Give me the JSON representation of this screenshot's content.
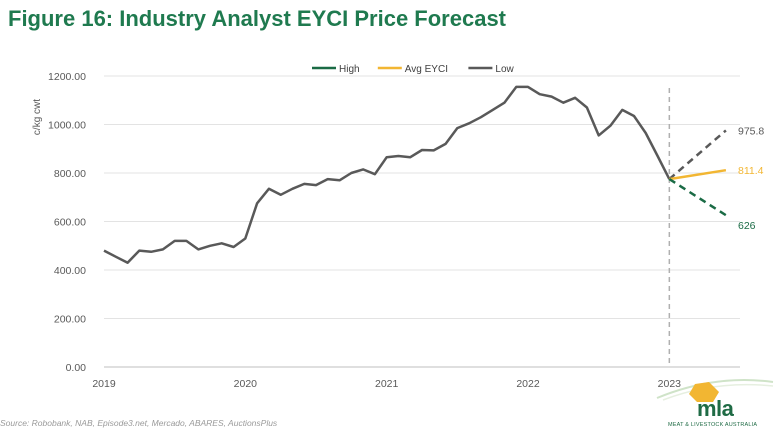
{
  "title": "Figure 16: Industry Analyst EYCI Price Forecast",
  "source": "Source: Robobank, NAB, Episode3.net, Mercado, ABARES, AuctionsPlus",
  "logo": {
    "name": "mla",
    "subtitle": "MEAT & LIVESTOCK AUSTRALIA"
  },
  "chart_data": {
    "type": "line",
    "ylabel": "c/kg cwt",
    "ylim": [
      0,
      1200
    ],
    "yticks": [
      "0.00",
      "200.00",
      "400.00",
      "600.00",
      "800.00",
      "1000.00",
      "1200.00"
    ],
    "xticks": [
      "2019",
      "2020",
      "2021",
      "2022",
      "2023"
    ],
    "legend_position": "top-center",
    "grid": true,
    "colors": {
      "High": "#1a6b45",
      "Avg EYCI": "#f2b632",
      "Low": "#595959"
    },
    "legend": [
      {
        "name": "High",
        "color": "#1a6b45"
      },
      {
        "name": "Avg EYCI",
        "color": "#f2b632"
      },
      {
        "name": "Low",
        "color": "#595959"
      }
    ],
    "series": [
      {
        "name": "Low",
        "x": [
          2019.0,
          2019.083,
          2019.167,
          2019.25,
          2019.333,
          2019.417,
          2019.5,
          2019.583,
          2019.667,
          2019.75,
          2019.833,
          2019.917,
          2020.0,
          2020.083,
          2020.167,
          2020.25,
          2020.333,
          2020.417,
          2020.5,
          2020.583,
          2020.667,
          2020.75,
          2020.833,
          2020.917,
          2021.0,
          2021.083,
          2021.167,
          2021.25,
          2021.333,
          2021.417,
          2021.5,
          2021.583,
          2021.667,
          2021.75,
          2021.833,
          2021.917,
          2022.0,
          2022.083,
          2022.167,
          2022.25,
          2022.333,
          2022.417,
          2022.5,
          2022.583,
          2022.667,
          2022.75,
          2022.833,
          2022.917,
          2023.0
        ],
        "values": [
          480,
          455,
          430,
          480,
          475,
          485,
          520,
          520,
          485,
          500,
          510,
          495,
          530,
          675,
          735,
          710,
          735,
          755,
          750,
          775,
          770,
          800,
          815,
          795,
          865,
          870,
          865,
          895,
          893,
          920,
          985,
          1005,
          1030,
          1060,
          1090,
          1155,
          1155,
          1125,
          1115,
          1090,
          1110,
          1070,
          955,
          995,
          1060,
          1035,
          965,
          870,
          775
        ]
      },
      {
        "name": "High",
        "x": [
          2023.0,
          2023.4
        ],
        "values": [
          775,
          975.8
        ]
      },
      {
        "name": "Avg EYCI",
        "x": [
          2023.0,
          2023.4
        ],
        "values": [
          775,
          811.4
        ]
      },
      {
        "name": "Low",
        "x": [
          2023.0,
          2023.4
        ],
        "values": [
          775,
          626
        ]
      }
    ],
    "forecast_labels": [
      {
        "text": "975.8",
        "value": 975.8,
        "color": "#595959"
      },
      {
        "text": "811.4",
        "value": 811.4,
        "color": "#f2b632"
      },
      {
        "text": "626",
        "value": 626,
        "color": "#1a6b45"
      }
    ],
    "marker_x": 2023.0
  }
}
